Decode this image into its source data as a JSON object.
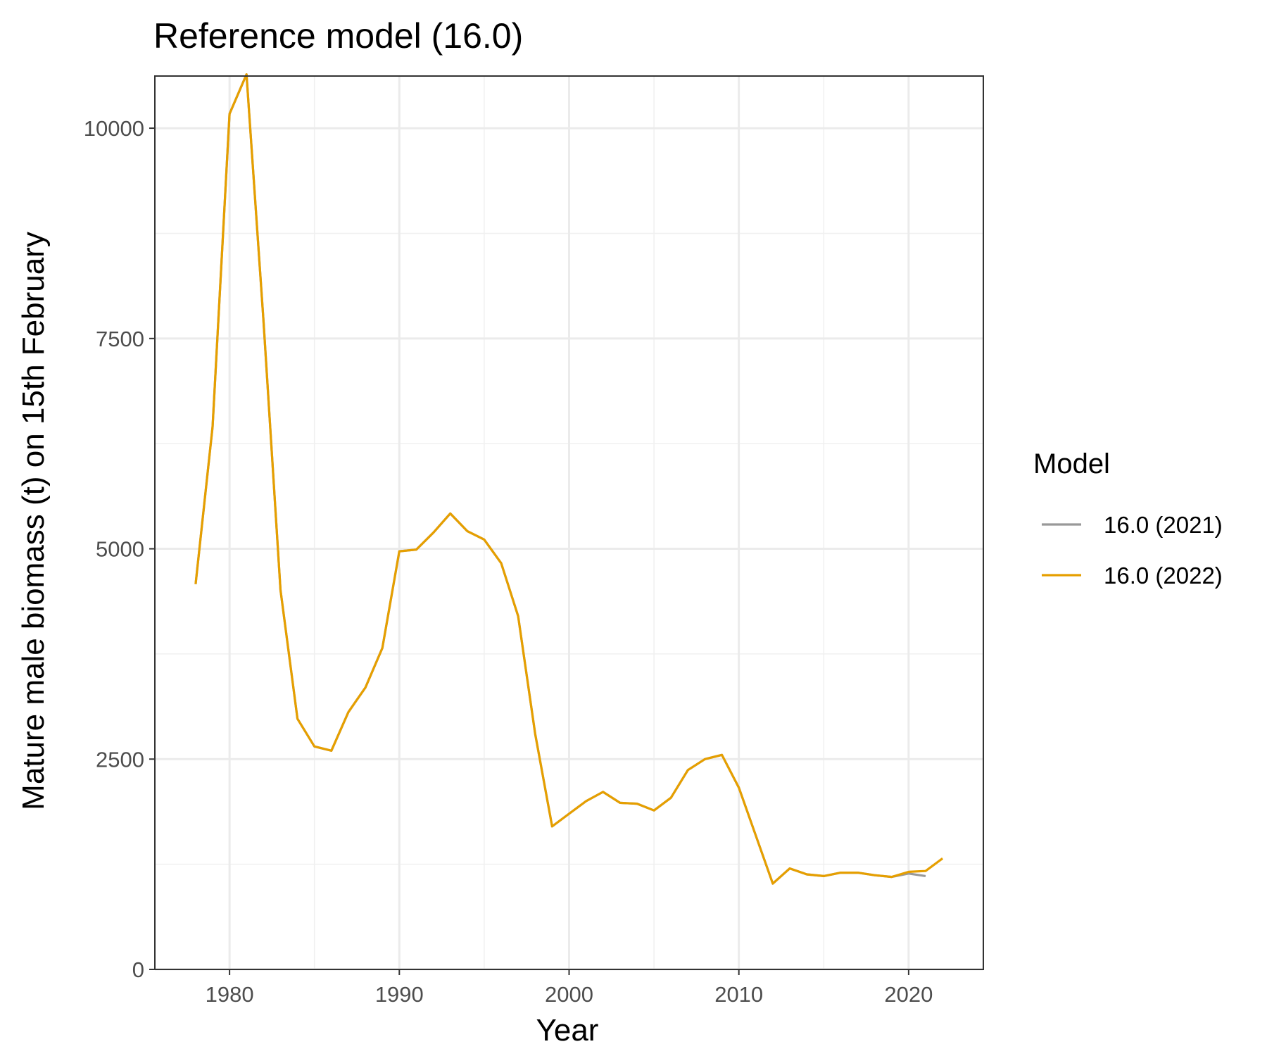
{
  "chart_data": {
    "type": "line",
    "title": "Reference model (16.0)",
    "xlabel": "Year",
    "ylabel": "Mature male biomass (t) on 15th February",
    "xlim": [
      1975.6,
      2024.4
    ],
    "ylim": [
      0,
      10620
    ],
    "x_ticks": [
      1980,
      1990,
      2000,
      2010,
      2020
    ],
    "x_tick_labels": [
      "1980",
      "1990",
      "2000",
      "2010",
      "2020"
    ],
    "y_ticks": [
      0,
      2500,
      5000,
      7500,
      10000
    ],
    "y_tick_labels": [
      "0",
      "2500",
      "5000",
      "7500",
      "10000"
    ],
    "grid": true,
    "legend": {
      "title": "Model",
      "position": "right"
    },
    "series": [
      {
        "name": "16.0 (2021)",
        "color": "#999999",
        "x": [
          1978,
          1979,
          1980,
          1981,
          1982,
          1983,
          1984,
          1985,
          1986,
          1987,
          1988,
          1989,
          1990,
          1991,
          1992,
          1993,
          1994,
          1995,
          1996,
          1997,
          1998,
          1999,
          2000,
          2001,
          2002,
          2003,
          2004,
          2005,
          2006,
          2007,
          2008,
          2009,
          2010,
          2011,
          2012,
          2013,
          2014,
          2015,
          2016,
          2017,
          2018,
          2019,
          2020,
          2021
        ],
        "values": [
          4580,
          6450,
          10170,
          10640,
          7700,
          4510,
          2980,
          2650,
          2600,
          3060,
          3350,
          3820,
          4970,
          4990,
          5190,
          5420,
          5210,
          5110,
          4830,
          4200,
          2800,
          1700,
          1850,
          2000,
          2110,
          1980,
          1970,
          1890,
          2040,
          2370,
          2500,
          2550,
          2160,
          1590,
          1020,
          1200,
          1130,
          1110,
          1150,
          1150,
          1120,
          1100,
          1140,
          1110
        ]
      },
      {
        "name": "16.0 (2022)",
        "color": "#e69f00",
        "x": [
          1978,
          1979,
          1980,
          1981,
          1982,
          1983,
          1984,
          1985,
          1986,
          1987,
          1988,
          1989,
          1990,
          1991,
          1992,
          1993,
          1994,
          1995,
          1996,
          1997,
          1998,
          1999,
          2000,
          2001,
          2002,
          2003,
          2004,
          2005,
          2006,
          2007,
          2008,
          2009,
          2010,
          2011,
          2012,
          2013,
          2014,
          2015,
          2016,
          2017,
          2018,
          2019,
          2020,
          2021,
          2022
        ],
        "values": [
          4580,
          6450,
          10170,
          10640,
          7700,
          4510,
          2980,
          2650,
          2600,
          3060,
          3350,
          3820,
          4970,
          4990,
          5190,
          5420,
          5210,
          5110,
          4830,
          4200,
          2800,
          1700,
          1850,
          2000,
          2110,
          1980,
          1970,
          1890,
          2040,
          2370,
          2500,
          2550,
          2160,
          1590,
          1020,
          1200,
          1130,
          1110,
          1150,
          1150,
          1120,
          1100,
          1160,
          1170,
          1320
        ]
      }
    ]
  }
}
